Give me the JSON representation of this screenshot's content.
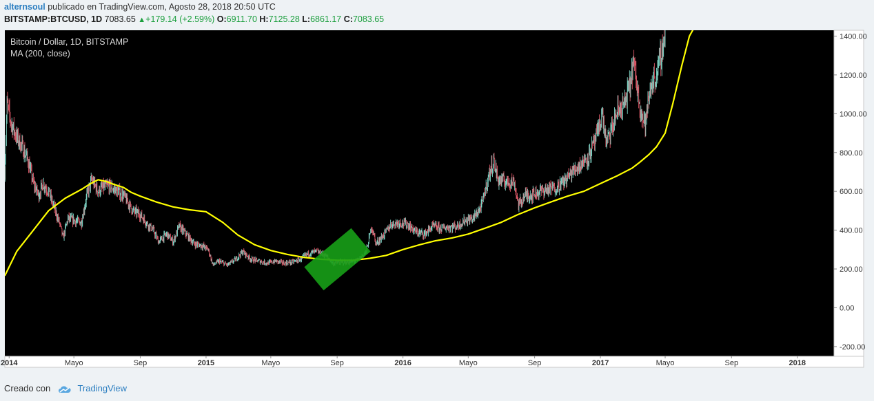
{
  "header": {
    "author": "alternsoul",
    "published_text": "publicado en TradingView.com, Agosto 28, 2018 20:50 UTC",
    "symbol": "BITSTAMP:BTCUSD, 1D",
    "last": "7083.65",
    "change": "+179.14 (+2.59%)",
    "o_label": "O:",
    "o_value": "6911.70",
    "h_label": "H:",
    "h_value": "7125.28",
    "l_label": "L:",
    "l_value": "6861.17",
    "c_label": "C:",
    "c_value": "7083.65"
  },
  "legend": {
    "title": "Bitcoin / Dollar, 1D, BITSTAMP",
    "indicator": "MA (200, close)"
  },
  "footer": {
    "created_with": "Creado con",
    "brand": "TradingView"
  },
  "colors": {
    "background": "#000000",
    "ma_line": "#ffff00",
    "up": "#7fd6c7",
    "down": "#e05a6a",
    "highlight": "#17a017",
    "axis_bg": "#ffffff",
    "page_bg": "#eef2f5"
  },
  "chart_data": {
    "type": "line",
    "title": "Bitcoin / Dollar, 1D, BITSTAMP",
    "ylim": [
      -250,
      1430
    ],
    "y_ticks": [
      "1400.00",
      "1200.00",
      "1000.00",
      "800.00",
      "600.00",
      "400.00",
      "200.00",
      "0.00",
      "-200.00"
    ],
    "y_tick_values": [
      1400,
      1200,
      1000,
      800,
      600,
      400,
      200,
      0,
      -200
    ],
    "x_range": [
      "2013-12-24",
      "2018-03-10"
    ],
    "x_ticks": [
      {
        "label": "2014",
        "date": "2014-01-01",
        "bold": true
      },
      {
        "label": "Mayo",
        "date": "2014-05-01",
        "bold": false
      },
      {
        "label": "Sep",
        "date": "2014-09-01",
        "bold": false
      },
      {
        "label": "2015",
        "date": "2015-01-01",
        "bold": true
      },
      {
        "label": "Mayo",
        "date": "2015-05-01",
        "bold": false
      },
      {
        "label": "Sep",
        "date": "2015-09-01",
        "bold": false
      },
      {
        "label": "2016",
        "date": "2016-01-01",
        "bold": true
      },
      {
        "label": "Mayo",
        "date": "2016-05-01",
        "bold": false
      },
      {
        "label": "Sep",
        "date": "2016-09-01",
        "bold": false
      },
      {
        "label": "2017",
        "date": "2017-01-01",
        "bold": true
      },
      {
        "label": "Mayo",
        "date": "2017-05-01",
        "bold": false
      },
      {
        "label": "Sep",
        "date": "2017-09-01",
        "bold": false
      },
      {
        "label": "2018",
        "date": "2018-01-01",
        "bold": true
      }
    ],
    "grid": false,
    "series": [
      {
        "name": "Bitcoin / Dollar",
        "x": [
          "2013-12-24",
          "2013-12-28",
          "2014-01-05",
          "2014-01-15",
          "2014-01-25",
          "2014-02-05",
          "2014-02-15",
          "2014-02-25",
          "2014-03-05",
          "2014-03-15",
          "2014-03-25",
          "2014-04-05",
          "2014-04-11",
          "2014-04-20",
          "2014-05-01",
          "2014-05-15",
          "2014-05-25",
          "2014-06-03",
          "2014-06-15",
          "2014-06-25",
          "2014-07-05",
          "2014-07-20",
          "2014-08-01",
          "2014-08-18",
          "2014-09-01",
          "2014-09-15",
          "2014-09-25",
          "2014-10-05",
          "2014-10-20",
          "2014-11-01",
          "2014-11-12",
          "2014-11-25",
          "2014-12-10",
          "2014-12-25",
          "2015-01-05",
          "2015-01-14",
          "2015-01-25",
          "2015-02-10",
          "2015-02-25",
          "2015-03-10",
          "2015-03-25",
          "2015-04-10",
          "2015-04-25",
          "2015-05-10",
          "2015-05-25",
          "2015-06-10",
          "2015-06-25",
          "2015-07-10",
          "2015-07-25",
          "2015-08-10",
          "2015-08-24",
          "2015-09-10",
          "2015-09-25",
          "2015-10-10",
          "2015-10-25",
          "2015-11-04",
          "2015-11-12",
          "2015-11-25",
          "2015-12-10",
          "2015-12-25",
          "2016-01-10",
          "2016-01-25",
          "2016-02-10",
          "2016-02-25",
          "2016-03-10",
          "2016-03-25",
          "2016-04-10",
          "2016-04-25",
          "2016-05-10",
          "2016-05-25",
          "2016-06-10",
          "2016-06-17",
          "2016-06-25",
          "2016-07-10",
          "2016-07-25",
          "2016-08-02",
          "2016-08-15",
          "2016-08-25",
          "2016-09-10",
          "2016-09-25",
          "2016-10-10",
          "2016-10-25",
          "2016-11-10",
          "2016-11-25",
          "2016-12-10",
          "2016-12-25",
          "2017-01-04",
          "2017-01-12",
          "2017-01-20",
          "2017-02-01",
          "2017-02-15",
          "2017-02-25",
          "2017-03-03",
          "2017-03-12",
          "2017-03-20",
          "2017-03-25",
          "2017-04-05",
          "2017-04-15",
          "2017-04-25",
          "2017-05-01"
        ],
        "values": [
          700,
          1050,
          950,
          880,
          830,
          760,
          640,
          580,
          640,
          600,
          520,
          430,
          360,
          460,
          450,
          440,
          580,
          660,
          600,
          620,
          630,
          600,
          580,
          500,
          480,
          430,
          400,
          340,
          380,
          340,
          420,
          380,
          330,
          320,
          300,
          220,
          240,
          220,
          250,
          290,
          250,
          240,
          230,
          240,
          230,
          235,
          250,
          280,
          290,
          270,
          230,
          235,
          235,
          245,
          290,
          420,
          330,
          370,
          430,
          440,
          430,
          390,
          380,
          420,
          410,
          415,
          420,
          450,
          460,
          520,
          700,
          760,
          660,
          650,
          650,
          530,
          580,
          580,
          600,
          610,
          620,
          650,
          700,
          740,
          780,
          880,
          1000,
          850,
          900,
          1010,
          1050,
          1150,
          1270,
          1100,
          980,
          950,
          1150,
          1200,
          1320,
          1420
        ]
      },
      {
        "name": "MA (200, close)",
        "x": [
          "2013-12-24",
          "2014-01-15",
          "2014-02-15",
          "2014-03-15",
          "2014-04-15",
          "2014-05-15",
          "2014-06-01",
          "2014-06-15",
          "2014-07-01",
          "2014-07-15",
          "2014-08-01",
          "2014-08-15",
          "2014-09-01",
          "2014-10-01",
          "2014-11-01",
          "2014-12-01",
          "2015-01-01",
          "2015-02-01",
          "2015-03-01",
          "2015-04-01",
          "2015-05-01",
          "2015-06-01",
          "2015-07-01",
          "2015-08-01",
          "2015-09-01",
          "2015-10-01",
          "2015-11-01",
          "2015-12-01",
          "2016-01-01",
          "2016-02-01",
          "2016-03-01",
          "2016-04-01",
          "2016-05-01",
          "2016-06-01",
          "2016-07-01",
          "2016-08-01",
          "2016-09-01",
          "2016-10-01",
          "2016-11-01",
          "2016-12-01",
          "2017-01-01",
          "2017-02-01",
          "2017-03-01",
          "2017-03-15",
          "2017-04-01",
          "2017-04-15",
          "2017-05-01",
          "2017-05-15",
          "2017-06-01",
          "2017-06-15",
          "2017-06-25"
        ],
        "values": [
          165,
          290,
          400,
          500,
          565,
          610,
          640,
          660,
          650,
          635,
          620,
          595,
          575,
          545,
          520,
          505,
          495,
          440,
          375,
          325,
          295,
          275,
          260,
          250,
          245,
          245,
          255,
          270,
          300,
          325,
          345,
          360,
          380,
          410,
          440,
          480,
          515,
          545,
          575,
          600,
          640,
          680,
          720,
          750,
          790,
          830,
          900,
          1050,
          1250,
          1400,
          1450
        ]
      }
    ],
    "annotations": [
      {
        "type": "rectangle",
        "color": "#17a017",
        "from": {
          "x": "2015-07-20",
          "y": 150
        },
        "to": {
          "x": "2015-10-15",
          "y": 350
        }
      }
    ]
  }
}
